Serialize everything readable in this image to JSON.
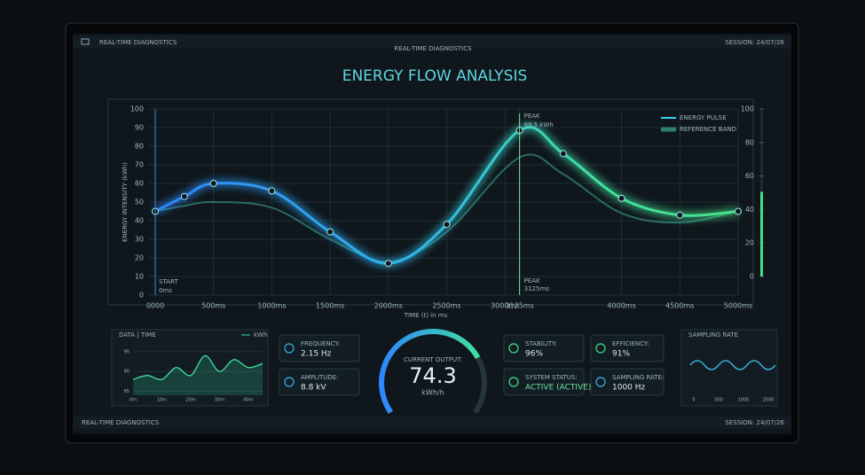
{
  "header": {
    "menu_title": "REAL-TIME DIAGNOSTICS",
    "center_title": "REAL-TIME DIAGNOSTICS",
    "session": "SESSION: 24/07/26"
  },
  "chart_data": {
    "type": "line",
    "title": "ENERGY FLOW ANALYSIS",
    "y_label": "ENERGY INTENSITY (kWh)",
    "x_label": "TIME (t) in ms",
    "x": [
      0,
      250,
      500,
      1000,
      1500,
      2000,
      2500,
      3125,
      3500,
      4000,
      4500,
      5000
    ],
    "series": [
      {
        "name": "ENERGY PULSE",
        "color": "#38d6e8",
        "values": [
          45,
          53,
          60,
          56,
          34,
          17,
          38,
          88.5,
          76,
          52,
          43,
          45
        ]
      },
      {
        "name": "REFERENCE BAND",
        "color": "#2f7f72",
        "values": [
          45,
          48,
          50,
          47,
          30,
          18,
          34,
          74,
          65,
          44,
          39,
          45
        ]
      }
    ],
    "xlim": [
      0,
      5000
    ],
    "xticks": [
      {
        "value": 0,
        "label": "0000"
      },
      {
        "value": 500,
        "label": "500ms"
      },
      {
        "value": 1000,
        "label": "1000ms"
      },
      {
        "value": 1500,
        "label": "1500ms"
      },
      {
        "value": 2000,
        "label": "2000ms"
      },
      {
        "value": 2500,
        "label": "2500ms"
      },
      {
        "value": 3000,
        "label": "3000ms"
      },
      {
        "value": 3125,
        "label": "3125ms"
      },
      {
        "value": 4000,
        "label": "4000ms"
      },
      {
        "value": 4500,
        "label": "4500ms"
      },
      {
        "value": 5000,
        "label": "5000ms"
      }
    ],
    "ylim": [
      0,
      100
    ],
    "yticks": [
      0,
      10,
      20,
      30,
      40,
      50,
      60,
      70,
      80,
      90,
      100
    ],
    "grid": true,
    "annotations": {
      "peak_label": "PEAK",
      "peak_value": "88.5 kWh",
      "peak_time_label": "PEAK",
      "peak_time": "3125ms",
      "start_label": "START",
      "start_time": "0ms"
    },
    "right_scale": {
      "lim": [
        0,
        100
      ],
      "ticks": [
        0,
        20,
        40,
        60,
        80,
        100
      ],
      "value": 40
    }
  },
  "mini_chart": {
    "title": "DATA | TIME",
    "legend": "kWh",
    "x": [
      0,
      5,
      10,
      15,
      20,
      25,
      30,
      35,
      40,
      45
    ],
    "values": [
      88,
      89,
      88,
      91,
      89,
      94,
      90,
      93,
      91,
      92
    ],
    "xlim": [
      0,
      45
    ],
    "xticks": [
      {
        "value": 0,
        "label": "0m"
      },
      {
        "value": 10,
        "label": "10m"
      },
      {
        "value": 20,
        "label": "20m"
      },
      {
        "value": 30,
        "label": "30m"
      },
      {
        "value": 40,
        "label": "40m"
      }
    ],
    "ylim": [
      84,
      97
    ],
    "yticks": [
      85,
      90,
      95
    ]
  },
  "metrics": [
    {
      "label": "FREQUENCY:",
      "value": "2.15 Hz"
    },
    {
      "label": "AMPLITUDE:",
      "value": "8.8 kV"
    },
    {
      "label": "STABILITY:",
      "value": "96%"
    },
    {
      "label": "SYSTEM STATUS:",
      "value": "ACTIVE (ACTIVE)"
    },
    {
      "label": "EFFICIENCY:",
      "value": "91%"
    },
    {
      "label": "SAMPLING RATE:",
      "value": "1000 Hz"
    }
  ],
  "gauge": {
    "label": "CURRENT OUTPUT:",
    "value": 74.3,
    "unit": "kWh/h",
    "range": [
      0,
      100
    ]
  },
  "sampling_chart": {
    "title": "SAMPLING RATE",
    "xticks": [
      "0",
      "500",
      "1000",
      "2500"
    ]
  },
  "footer": {
    "left": "REAL-TIME DIAGNOSTICS",
    "right": "SESSION: 24/07/26"
  }
}
